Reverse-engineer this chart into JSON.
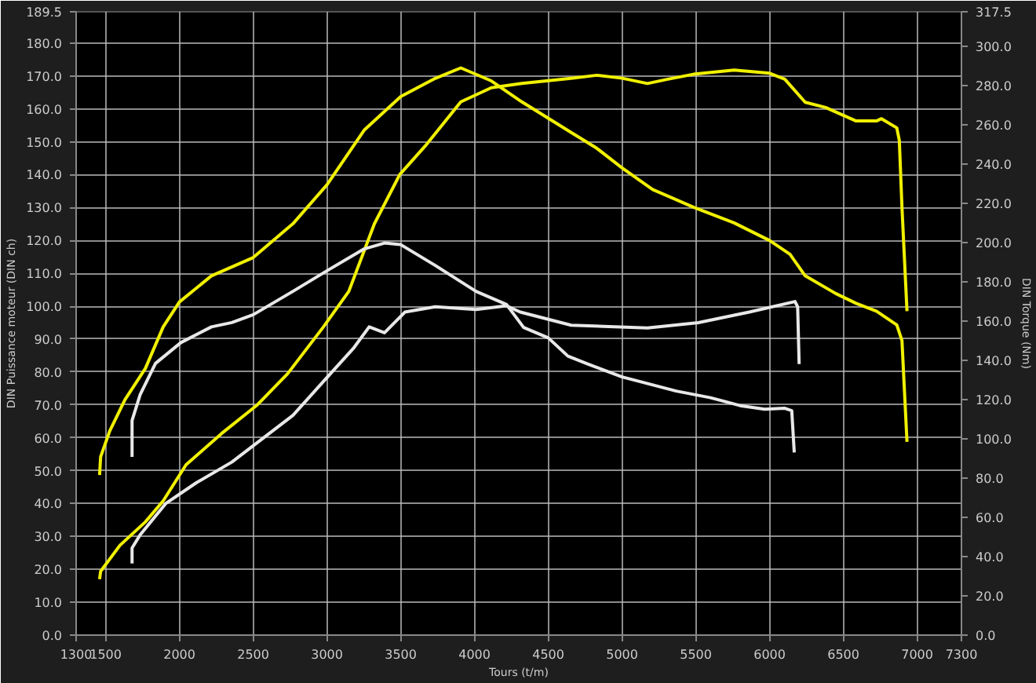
{
  "chart_data": {
    "type": "line",
    "xlabel": "Tours (t/m)",
    "ylabel": "DIN Puissance moteur (DIN ch)",
    "y2label": "DIN Torque (Nm)",
    "xlim": [
      1300,
      7300
    ],
    "xticks": [
      1300,
      1500,
      2000,
      2500,
      3000,
      3500,
      4000,
      4500,
      5000,
      5500,
      6000,
      6500,
      7000,
      7300
    ],
    "ylim": [
      0,
      189.5
    ],
    "yticks": [
      {
        "value": 0,
        "label": "0.0"
      },
      {
        "value": 10,
        "label": "10.0"
      },
      {
        "value": 20,
        "label": "20.0"
      },
      {
        "value": 30,
        "label": "30.0"
      },
      {
        "value": 40,
        "label": "40.0"
      },
      {
        "value": 50,
        "label": "50.0"
      },
      {
        "value": 60,
        "label": "60.0"
      },
      {
        "value": 70,
        "label": "70.0"
      },
      {
        "value": 80,
        "label": "80.0"
      },
      {
        "value": 90,
        "label": "90.0"
      },
      {
        "value": 100,
        "label": "100.0"
      },
      {
        "value": 110,
        "label": "110.0"
      },
      {
        "value": 120,
        "label": "120.0"
      },
      {
        "value": 130,
        "label": "130.0"
      },
      {
        "value": 140,
        "label": "140.0"
      },
      {
        "value": 150,
        "label": "150.0"
      },
      {
        "value": 160,
        "label": "160.0"
      },
      {
        "value": 170,
        "label": "170.0"
      },
      {
        "value": 180,
        "label": "180.0"
      },
      {
        "value": 189.5,
        "label": "189.5"
      }
    ],
    "y2lim": [
      0,
      317.5
    ],
    "y2ticks": [
      {
        "value": 0,
        "label": "0.0"
      },
      {
        "value": 20,
        "label": "20.0"
      },
      {
        "value": 40,
        "label": "40.0"
      },
      {
        "value": 60,
        "label": "60.0"
      },
      {
        "value": 80,
        "label": "80.0"
      },
      {
        "value": 100,
        "label": "100.0"
      },
      {
        "value": 120,
        "label": "120.0"
      },
      {
        "value": 140,
        "label": "140.0"
      },
      {
        "value": 160,
        "label": "160.0"
      },
      {
        "value": 180,
        "label": "180.0"
      },
      {
        "value": 200,
        "label": "200.0"
      },
      {
        "value": 220,
        "label": "220.0"
      },
      {
        "value": 240,
        "label": "240.0"
      },
      {
        "value": 260,
        "label": "260.0"
      },
      {
        "value": 280,
        "label": "280.0"
      },
      {
        "value": 300,
        "label": "300.0"
      },
      {
        "value": 317.5,
        "label": "317.5"
      }
    ],
    "grid": true,
    "marker": "none",
    "line_style": "solid",
    "series": [
      {
        "color": "#f0f000",
        "x": [
          1459,
          1466,
          1597,
          1769,
          1890,
          2045,
          2286,
          2528,
          2734,
          2976,
          3148,
          3321,
          3493,
          3666,
          3907,
          4114,
          4321,
          4655,
          4828,
          5000,
          5172,
          5310,
          5483,
          5759,
          6000,
          6103,
          6241,
          6379,
          6586,
          6724,
          6758,
          6862,
          6879,
          6897,
          6931
        ],
        "values": [
          17,
          19.4,
          27.3,
          34.4,
          40.8,
          51.8,
          61.3,
          70,
          79.5,
          93.7,
          104.5,
          125,
          140,
          148.7,
          162.1,
          166.4,
          167.7,
          169.3,
          170.2,
          169.3,
          167.7,
          169,
          170.5,
          171.8,
          170.8,
          169,
          162,
          160.4,
          156.3,
          156.3,
          157,
          154.2,
          150.4,
          130,
          98.5
        ]
      },
      {
        "color": "#f0f000",
        "axis": "y2",
        "x": [
          1459,
          1466,
          1528,
          1631,
          1769,
          1890,
          2000,
          2217,
          2500,
          2769,
          3000,
          3252,
          3500,
          3734,
          3907,
          4114,
          4321,
          4655,
          4828,
          5000,
          5207,
          5483,
          5759,
          6000,
          6138,
          6241,
          6448,
          6586,
          6724,
          6862,
          6897,
          6903,
          6931
        ],
        "values": [
          81.5,
          90.8,
          104,
          119.9,
          135.8,
          157,
          169.7,
          183,
          192.3,
          209.5,
          229.4,
          257.2,
          274.3,
          283.6,
          288.9,
          282.3,
          271.6,
          256,
          248,
          238,
          227,
          218,
          210,
          201,
          194,
          183,
          174,
          169,
          165,
          158,
          150,
          140.8,
          98.4
        ]
      },
      {
        "color": "#e8e8e8",
        "x": [
          1679,
          1679,
          1734,
          1907,
          2114,
          2355,
          2562,
          2769,
          2976,
          3183,
          3286,
          3390,
          3528,
          3734,
          4010,
          4217,
          4310,
          4655,
          5172,
          5517,
          5862,
          6172,
          6190,
          6200
        ],
        "values": [
          21.8,
          26.5,
          30.5,
          40,
          46.3,
          52.6,
          59.7,
          66.8,
          77.1,
          87.4,
          93.7,
          91.9,
          98.2,
          99.8,
          99,
          100.1,
          98.2,
          94.2,
          93.4,
          95,
          98.2,
          101.4,
          99.8,
          82.4
        ]
      },
      {
        "color": "#e8e8e8",
        "axis": "y2",
        "x": [
          1679,
          1679,
          1734,
          1838,
          2010,
          2217,
          2355,
          2500,
          2769,
          3000,
          3252,
          3390,
          3500,
          3734,
          4010,
          4217,
          4333,
          4500,
          4633,
          4767,
          5000,
          5133,
          5367,
          5600,
          5800,
          5967,
          6100,
          6150,
          6167
        ],
        "values": [
          90.8,
          109.3,
          122.5,
          138.4,
          149,
          157,
          159.2,
          163.2,
          175.1,
          185.6,
          196.7,
          199.7,
          198.9,
          188.3,
          175.1,
          168.4,
          156.7,
          151.4,
          142.1,
          138.1,
          131.5,
          128.9,
          124.3,
          120.9,
          116.9,
          115.1,
          115.6,
          114.3,
          93
        ]
      }
    ]
  }
}
